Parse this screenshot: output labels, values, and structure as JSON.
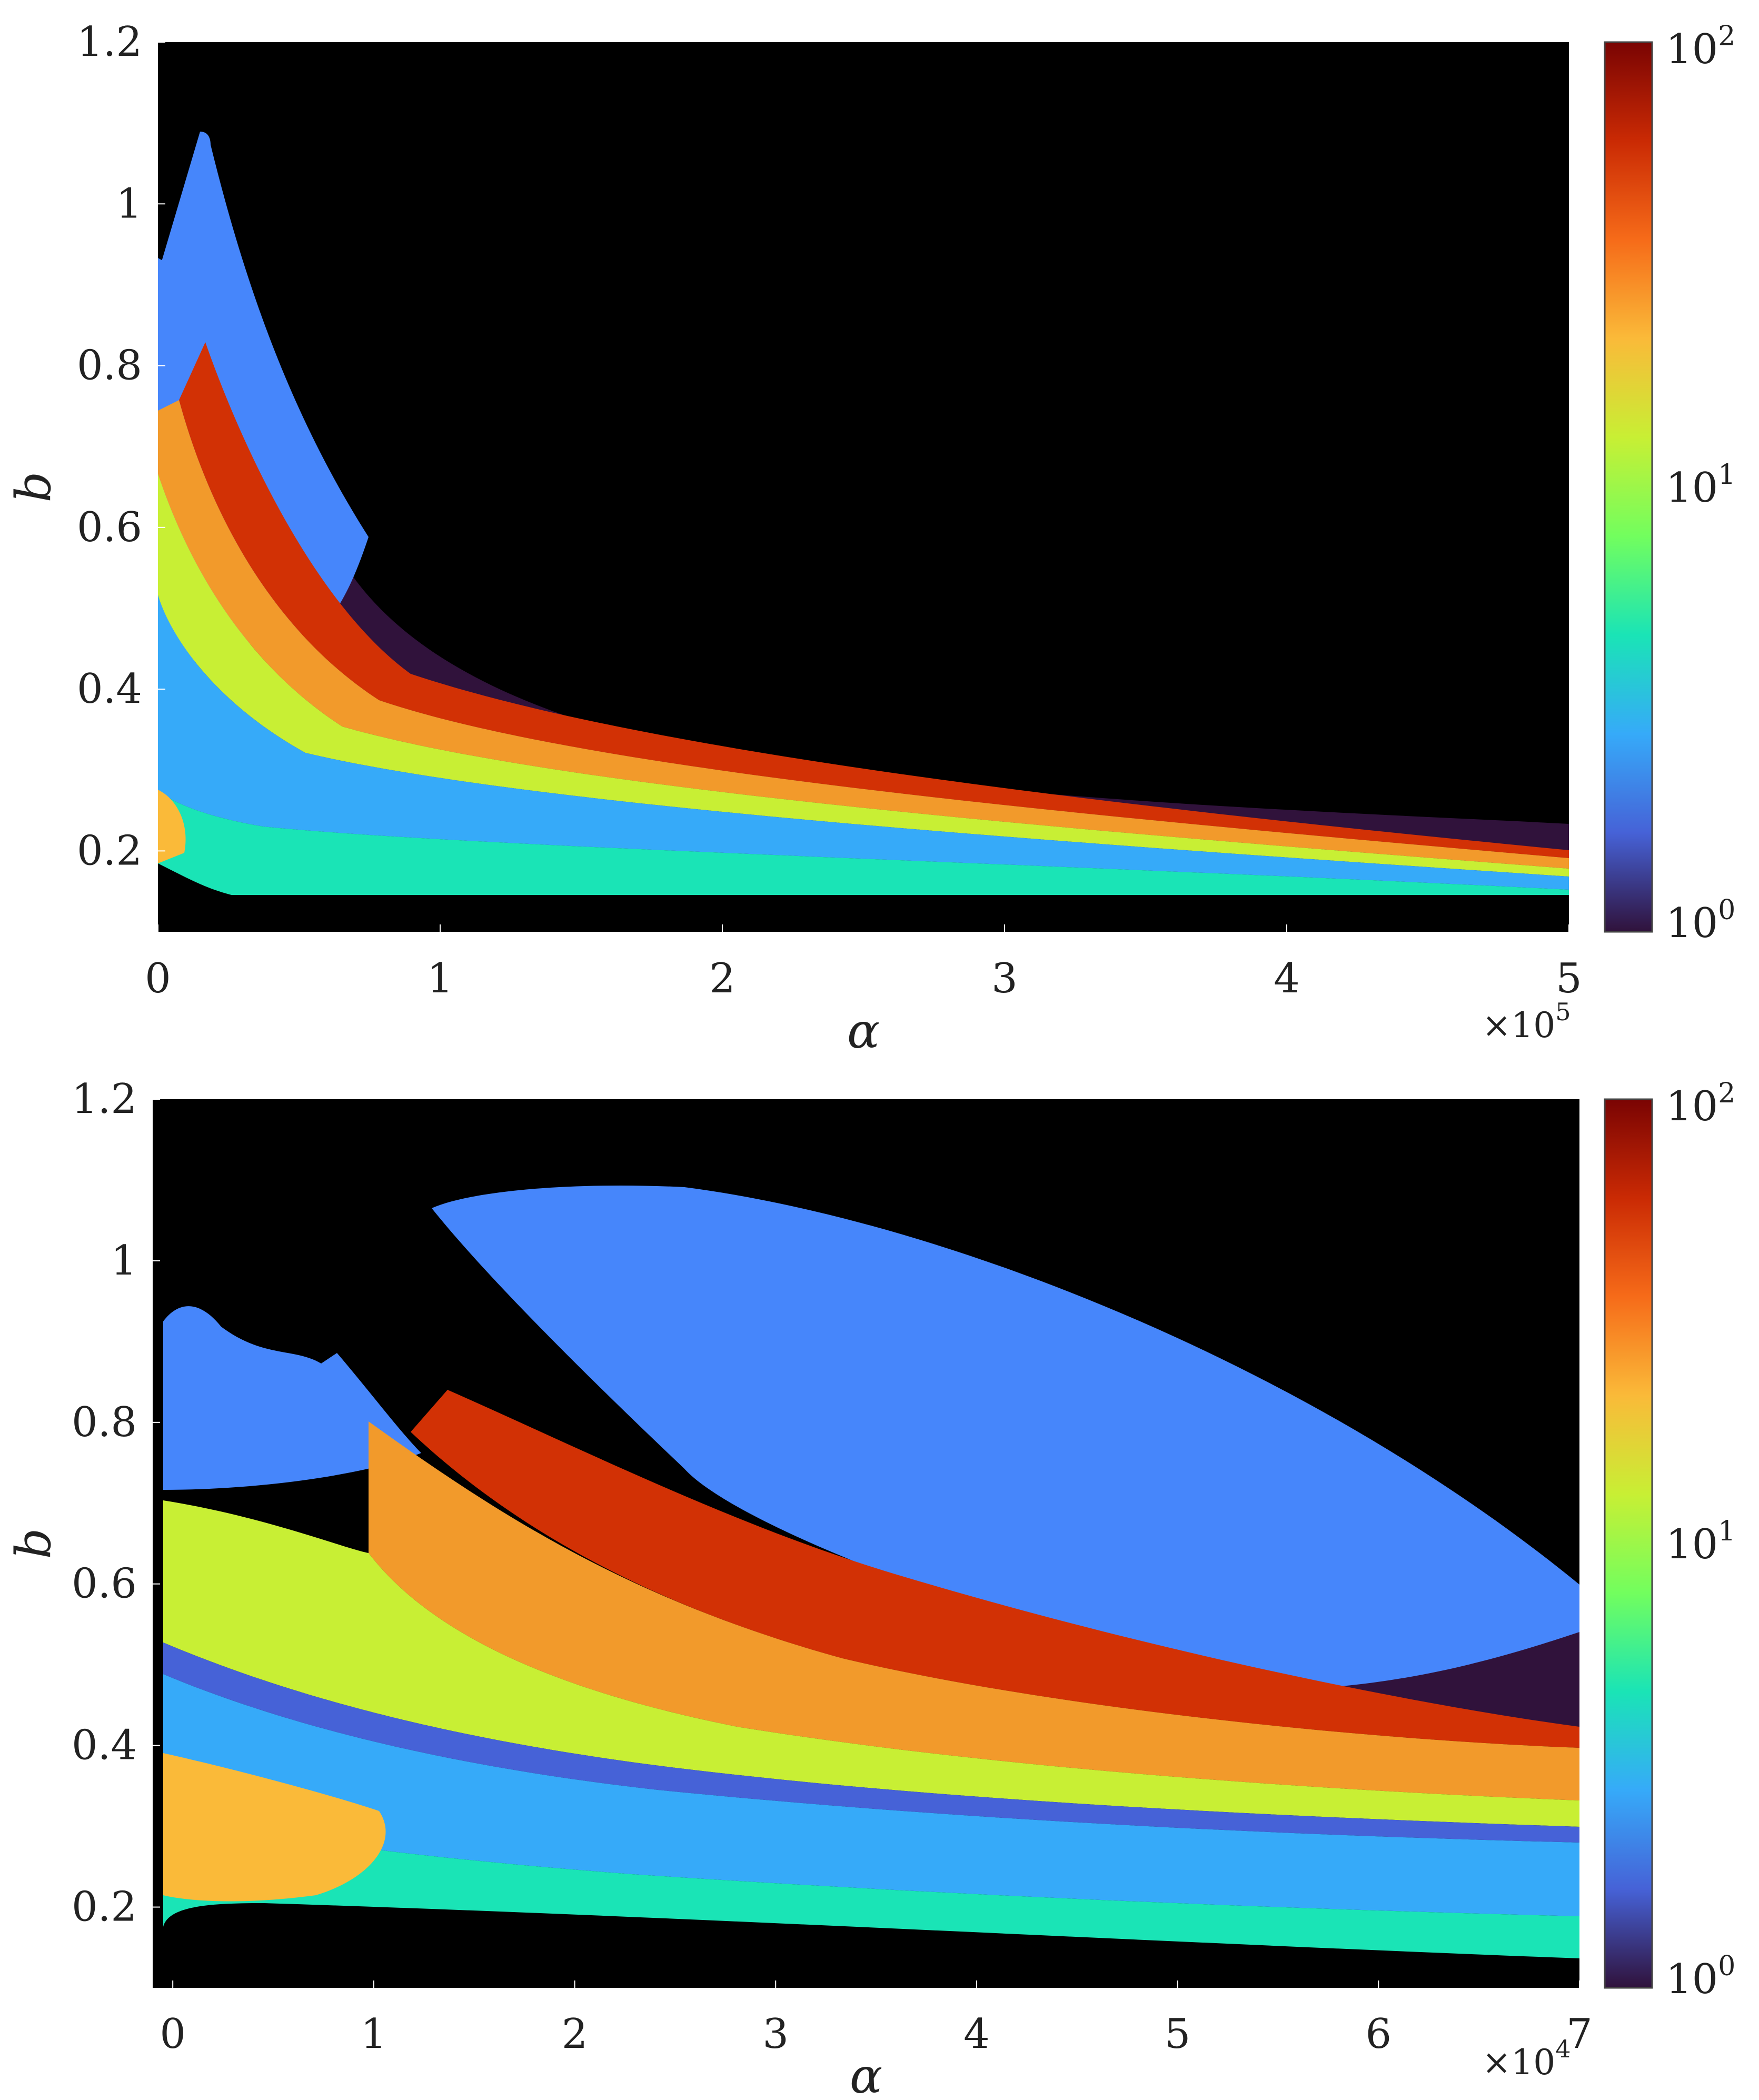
{
  "colors": {
    "background_region": "#000000",
    "low_region": "#30123b",
    "blue_region": "#4686fb",
    "cyan_region": "#1ae4b6",
    "yellow_region": "#d9e51f",
    "orange_region": "#f29a2b",
    "red_region": "#d23105",
    "colorbar_stops": [
      "#30123b",
      "#4662d7",
      "#36aaf9",
      "#1ae4b6",
      "#72fe5e",
      "#c8ef34",
      "#faba39",
      "#f66b19",
      "#ca2a04",
      "#7a0403"
    ]
  },
  "chart_data": [
    {
      "type": "heatmap",
      "panel": "top",
      "xlabel": "α",
      "ylabel": "b",
      "x_multiplier": "×10",
      "x_multiplier_exponent": "5",
      "xlim": [
        0,
        5
      ],
      "ylim": [
        0.1,
        1.2
      ],
      "x_ticks": [
        "0",
        "1",
        "2",
        "3",
        "4",
        "5"
      ],
      "y_ticks": [
        "0.2",
        "0.4",
        "0.6",
        "0.8",
        "1",
        "1.2"
      ],
      "colorbar": {
        "scale": "log",
        "range": [
          1,
          100
        ],
        "tick_base": [
          "10",
          "10",
          "10"
        ],
        "tick_exponents": [
          "0",
          "1",
          "2"
        ]
      }
    },
    {
      "type": "heatmap",
      "panel": "bottom",
      "xlabel": "α",
      "ylabel": "b",
      "x_multiplier": "×10",
      "x_multiplier_exponent": "4",
      "xlim": [
        -0.1,
        7
      ],
      "ylim": [
        0.1,
        1.2
      ],
      "x_ticks": [
        "0",
        "1",
        "2",
        "3",
        "4",
        "5",
        "6",
        "7"
      ],
      "y_ticks": [
        "0.2",
        "0.4",
        "0.6",
        "0.8",
        "1",
        "1.2"
      ],
      "colorbar": {
        "scale": "log",
        "range": [
          1,
          100
        ],
        "tick_base": [
          "10",
          "10",
          "10"
        ],
        "tick_exponents": [
          "0",
          "1",
          "2"
        ]
      }
    }
  ]
}
